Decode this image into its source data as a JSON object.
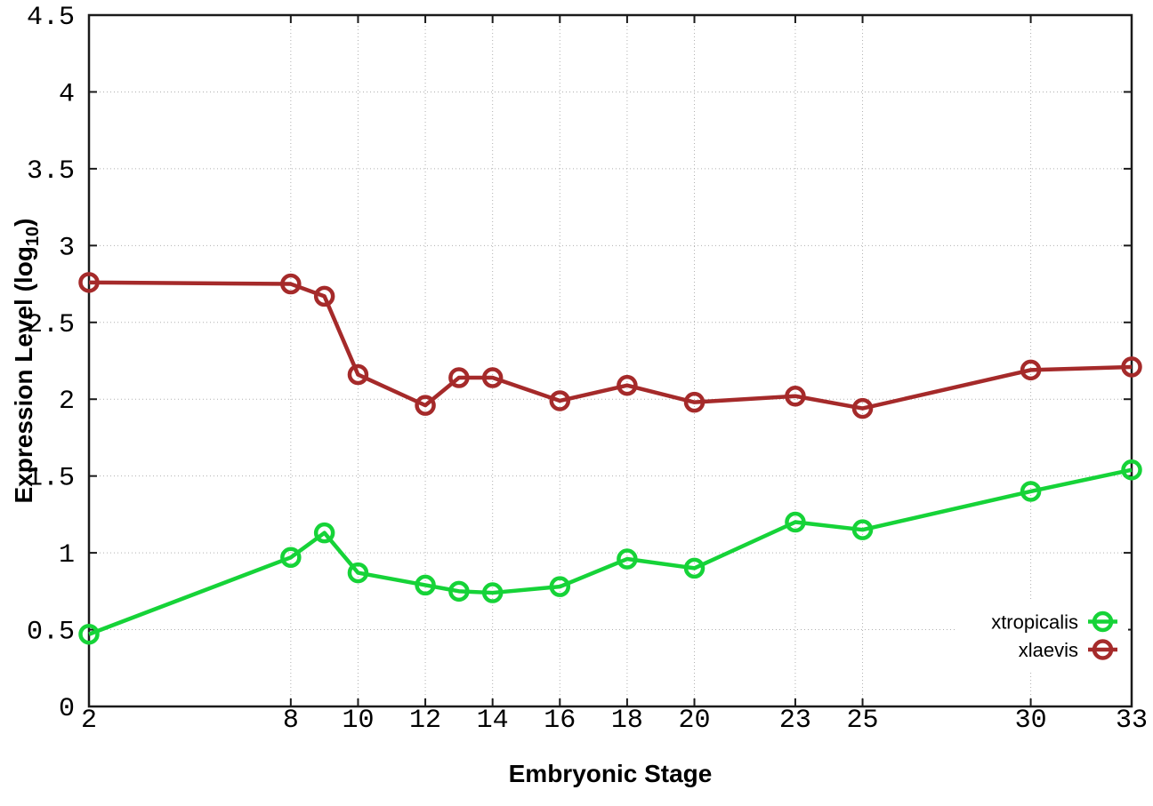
{
  "chart_data": {
    "type": "line",
    "title": "",
    "xlabel": "Embryonic Stage",
    "ylabel": {
      "text": "Expression Level (log",
      "sub": "10",
      "suffix": ")"
    },
    "xlim": [
      2,
      33
    ],
    "ylim": [
      0,
      4.5
    ],
    "grid": true,
    "legend_position": "inside bottom-right",
    "marker": "open-circle",
    "x_ticks": [
      2,
      8,
      10,
      12,
      14,
      16,
      18,
      20,
      23,
      25,
      30,
      33
    ],
    "x_tick_labels": [
      "2",
      "8",
      "10",
      "12",
      "14",
      "16",
      "18",
      "20",
      "23",
      "25",
      "30",
      "33"
    ],
    "y_ticks": [
      0,
      0.5,
      1,
      1.5,
      2,
      2.5,
      3,
      3.5,
      4,
      4.5
    ],
    "y_tick_labels": [
      "0",
      "0.5",
      "1",
      "1.5",
      "2",
      "2.5",
      "3",
      "3.5",
      "4",
      "4.5"
    ],
    "x": [
      2,
      8,
      9,
      10,
      12,
      13,
      14,
      16,
      18,
      20,
      23,
      25,
      30,
      33
    ],
    "series": [
      {
        "name": "xtropicalis",
        "color": "#16d338",
        "values": [
          0.47,
          0.97,
          1.13,
          0.87,
          0.79,
          0.75,
          0.74,
          0.78,
          0.96,
          0.9,
          1.2,
          1.15,
          1.4,
          1.54
        ]
      },
      {
        "name": "xlaevis",
        "color": "#a52a2a",
        "values": [
          2.76,
          2.75,
          2.67,
          2.16,
          1.96,
          2.14,
          2.14,
          1.99,
          2.09,
          1.98,
          2.02,
          1.94,
          2.19,
          2.21
        ]
      }
    ],
    "style": {
      "grid_color": "#b0b0b0",
      "axis_color": "#1a1a1a",
      "background": "#ffffff"
    }
  }
}
